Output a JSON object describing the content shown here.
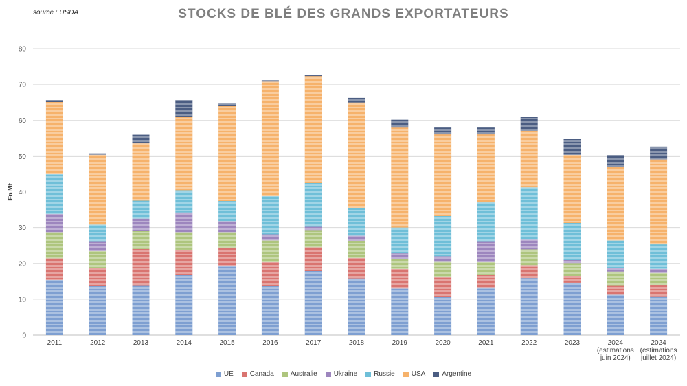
{
  "source_note": "source : USDA",
  "colors": {
    "UE": "#7e9fd1",
    "Canada": "#d97470",
    "Australie": "#aec57e",
    "Ukraine": "#9d86be",
    "Russie": "#6fbfd8",
    "USA": "#f6b26b",
    "Argentine": "#4b5d82",
    "grid": "#d9d9d9"
  },
  "chart_data": {
    "type": "bar",
    "stacked": true,
    "title": "STOCKS DE BLÉ DES GRANDS EXPORTATEURS",
    "xlabel": "",
    "ylabel": "En Mt",
    "ylim": [
      0,
      80
    ],
    "yticks": [
      "0",
      "10",
      "20",
      "30",
      "40",
      "50",
      "60",
      "70",
      "80"
    ],
    "grid": true,
    "legend_position": "bottom",
    "categories": [
      [
        "2011"
      ],
      [
        "2012"
      ],
      [
        "2013"
      ],
      [
        "2014"
      ],
      [
        "2015"
      ],
      [
        "2016"
      ],
      [
        "2017"
      ],
      [
        "2018"
      ],
      [
        "2019"
      ],
      [
        "2020"
      ],
      [
        "2021"
      ],
      [
        "2022"
      ],
      [
        "2023"
      ],
      [
        "2024",
        "(estimations",
        "juin 2024)"
      ],
      [
        "2024",
        "(estimations",
        "juillet 2024)"
      ]
    ],
    "series": [
      {
        "name": "UE",
        "values": [
          15.5,
          13.7,
          13.9,
          16.8,
          19.4,
          13.7,
          17.9,
          15.8,
          13.0,
          10.7,
          13.3,
          15.9,
          14.6,
          11.4,
          10.8
        ]
      },
      {
        "name": "Canada",
        "values": [
          5.9,
          5.1,
          10.3,
          7.0,
          5.0,
          6.8,
          6.6,
          5.9,
          5.5,
          5.6,
          3.6,
          3.6,
          1.9,
          2.5,
          3.2
        ]
      },
      {
        "name": "Australie",
        "values": [
          7.3,
          4.8,
          4.9,
          4.9,
          4.3,
          5.9,
          4.8,
          4.6,
          2.8,
          4.3,
          3.5,
          4.4,
          3.6,
          3.8,
          3.5
        ]
      },
      {
        "name": "Ukraine",
        "values": [
          5.2,
          2.6,
          3.4,
          5.5,
          3.1,
          1.7,
          1.1,
          1.6,
          1.5,
          1.4,
          5.8,
          2.9,
          1.0,
          1.1,
          1.1
        ]
      },
      {
        "name": "Russie",
        "values": [
          11.0,
          4.8,
          5.2,
          6.2,
          5.6,
          10.7,
          12.0,
          7.6,
          7.2,
          11.2,
          11.0,
          14.6,
          10.2,
          7.6,
          6.9
        ]
      },
      {
        "name": "USA",
        "values": [
          20.2,
          19.5,
          16.0,
          20.5,
          26.6,
          32.1,
          29.9,
          29.4,
          28.1,
          23.0,
          19.0,
          15.6,
          19.1,
          20.6,
          23.5
        ]
      },
      {
        "name": "Argentine",
        "values": [
          0.6,
          0.2,
          2.4,
          4.7,
          0.8,
          0.2,
          0.4,
          1.5,
          2.2,
          1.9,
          1.9,
          3.9,
          4.3,
          3.3,
          3.6
        ]
      }
    ]
  }
}
